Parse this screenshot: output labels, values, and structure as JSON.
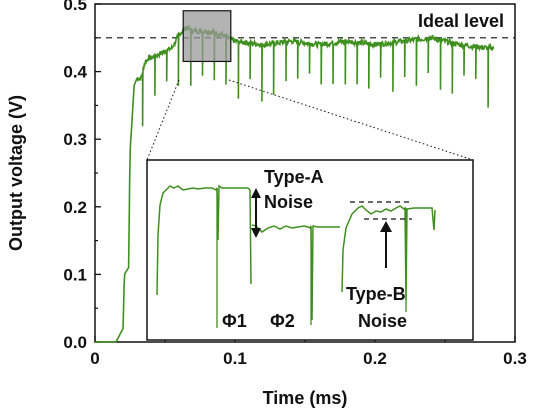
{
  "chart_data": {
    "type": "line",
    "xlabel": "Time (ms)",
    "ylabel": "Output voltage (V)",
    "xlim": [
      0,
      0.3
    ],
    "ylim": [
      0,
      0.5
    ],
    "xticks": [
      "0",
      "0.1",
      "0.2",
      "0.3"
    ],
    "xtick_values": [
      0,
      0.1,
      0.2,
      0.3
    ],
    "yticks": [
      "0.0",
      "0.1",
      "0.2",
      "0.3",
      "0.4",
      "0.5"
    ],
    "ytick_values": [
      0,
      0.1,
      0.2,
      0.3,
      0.4,
      0.5
    ],
    "grid": false,
    "ideal_level": {
      "label": "Ideal level",
      "value": 0.45
    },
    "series": [
      {
        "color": "#3f8f1f",
        "x": [
          0.0,
          0.015,
          0.02,
          0.021,
          0.024,
          0.025,
          0.028,
          0.03,
          0.033,
          0.035,
          0.038,
          0.04,
          0.045,
          0.05,
          0.055,
          0.06,
          0.065,
          0.07,
          0.08,
          0.09,
          0.1,
          0.12,
          0.14,
          0.16,
          0.18,
          0.2,
          0.22,
          0.24,
          0.26,
          0.28
        ],
        "y": [
          0.0,
          0.0,
          0.02,
          0.1,
          0.11,
          0.28,
          0.38,
          0.39,
          0.39,
          0.41,
          0.42,
          0.42,
          0.425,
          0.43,
          0.435,
          0.455,
          0.465,
          0.46,
          0.46,
          0.455,
          0.445,
          0.44,
          0.445,
          0.44,
          0.445,
          0.44,
          0.445,
          0.45,
          0.44,
          0.435
        ]
      }
    ],
    "zoom_box": {
      "x_range": [
        0.063,
        0.097
      ],
      "y_range": [
        0.415,
        0.49
      ]
    },
    "inset": {
      "annotations": [
        "Type-A",
        "Noise",
        "Type-B",
        "Noise"
      ],
      "phase_labels": [
        "Φ1",
        "Φ2"
      ]
    }
  }
}
